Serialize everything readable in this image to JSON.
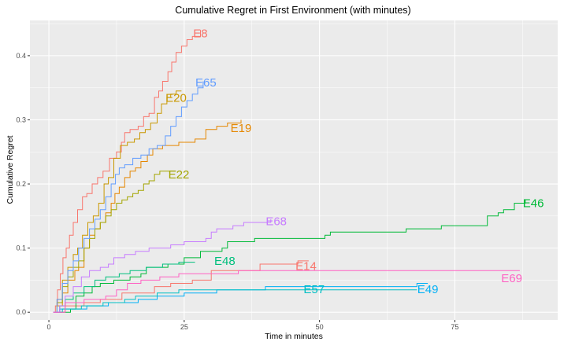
{
  "chart_data": {
    "type": "line",
    "title": "Cumulative Regret in First Environment (with minutes)",
    "xlabel": "Time in minutes",
    "ylabel": "Cumulative Regret",
    "xlim": [
      -3.5,
      94
    ],
    "ylim": [
      -0.012,
      0.455
    ],
    "x_ticks": [
      0,
      25,
      50,
      75
    ],
    "y_ticks": [
      0.0,
      0.1,
      0.2,
      0.3,
      0.4
    ],
    "y_tick_labels": [
      "0.0",
      "0.1",
      "0.2",
      "0.3",
      "0.4"
    ],
    "grid": true,
    "legend": "none (series labelled at line ends)",
    "background_color": "#ebebeb",
    "grid_color": "#ffffff",
    "series": [
      {
        "name": "E8",
        "color": "#f8766d",
        "points": [
          [
            0.8,
            0
          ],
          [
            1.2,
            0.01
          ],
          [
            1.6,
            0.035
          ],
          [
            2.1,
            0.06
          ],
          [
            2.6,
            0.085
          ],
          [
            3.2,
            0.1
          ],
          [
            3.8,
            0.12
          ],
          [
            4.5,
            0.14
          ],
          [
            5.3,
            0.16
          ],
          [
            6.2,
            0.18
          ],
          [
            7.0,
            0.185
          ],
          [
            8.0,
            0.2
          ],
          [
            9.0,
            0.21
          ],
          [
            10.0,
            0.22
          ],
          [
            11.2,
            0.24
          ],
          [
            12.5,
            0.25
          ],
          [
            13.4,
            0.265
          ],
          [
            14.0,
            0.28
          ],
          [
            15.0,
            0.285
          ],
          [
            16.5,
            0.29
          ],
          [
            17.5,
            0.305
          ],
          [
            18.5,
            0.31
          ],
          [
            19.5,
            0.335
          ],
          [
            20.3,
            0.345
          ],
          [
            21.0,
            0.36
          ],
          [
            22.0,
            0.375
          ],
          [
            22.7,
            0.39
          ],
          [
            23.5,
            0.405
          ],
          [
            24.5,
            0.415
          ],
          [
            25.5,
            0.425
          ],
          [
            26.5,
            0.43
          ],
          [
            28.0,
            0.44
          ]
        ],
        "label": "E8",
        "label_at": [
          28.0,
          0.435
        ]
      },
      {
        "name": "E14",
        "color": "#f8766d",
        "points": [
          [
            1.0,
            0
          ],
          [
            3.0,
            0.01
          ],
          [
            6.5,
            0.015
          ],
          [
            9.5,
            0.02
          ],
          [
            13.5,
            0.03
          ],
          [
            16.5,
            0.03
          ],
          [
            19.5,
            0.04
          ],
          [
            22.5,
            0.045
          ],
          [
            26.5,
            0.05
          ],
          [
            30.0,
            0.065
          ],
          [
            38.5,
            0.065
          ],
          [
            39.0,
            0.075
          ],
          [
            46.0,
            0.08
          ],
          [
            48.0,
            0.08
          ]
        ],
        "label": "E14",
        "label_at": [
          47.5,
          0.072
        ]
      },
      {
        "name": "E19",
        "color": "#e58700",
        "points": [
          [
            0.8,
            0
          ],
          [
            1.5,
            0.01
          ],
          [
            2.5,
            0.03
          ],
          [
            3.5,
            0.05
          ],
          [
            4.8,
            0.065
          ],
          [
            5.5,
            0.07
          ],
          [
            6.5,
            0.1
          ],
          [
            7.5,
            0.12
          ],
          [
            8.5,
            0.13
          ],
          [
            9.5,
            0.14
          ],
          [
            10.5,
            0.155
          ],
          [
            11.5,
            0.17
          ],
          [
            12.2,
            0.185
          ],
          [
            13.0,
            0.195
          ],
          [
            14.0,
            0.21
          ],
          [
            15.0,
            0.22
          ],
          [
            16.0,
            0.225
          ],
          [
            17.0,
            0.235
          ],
          [
            18.2,
            0.245
          ],
          [
            19.2,
            0.255
          ],
          [
            21.0,
            0.26
          ],
          [
            24.0,
            0.265
          ],
          [
            27.0,
            0.27
          ],
          [
            29.0,
            0.285
          ],
          [
            31.0,
            0.29
          ],
          [
            33.0,
            0.295
          ],
          [
            35.5,
            0.3
          ]
        ],
        "label": "E19",
        "label_at": [
          35.5,
          0.287
        ]
      },
      {
        "name": "E20",
        "color": "#c99800",
        "points": [
          [
            0.8,
            0
          ],
          [
            1.5,
            0.02
          ],
          [
            2.5,
            0.05
          ],
          [
            3.5,
            0.07
          ],
          [
            4.5,
            0.09
          ],
          [
            5.3,
            0.1
          ],
          [
            6.2,
            0.12
          ],
          [
            7.2,
            0.14
          ],
          [
            8.2,
            0.15
          ],
          [
            9.2,
            0.17
          ],
          [
            10.2,
            0.2
          ],
          [
            11.0,
            0.21
          ],
          [
            12.0,
            0.24
          ],
          [
            13.2,
            0.26
          ],
          [
            14.5,
            0.265
          ],
          [
            15.8,
            0.27
          ],
          [
            16.8,
            0.28
          ],
          [
            17.8,
            0.285
          ],
          [
            18.8,
            0.295
          ],
          [
            20.0,
            0.31
          ],
          [
            20.8,
            0.325
          ],
          [
            21.8,
            0.335
          ],
          [
            22.5,
            0.34
          ],
          [
            23.5,
            0.345
          ],
          [
            24.5,
            0.345
          ]
        ],
        "label": "E20",
        "label_at": [
          23.5,
          0.334
        ]
      },
      {
        "name": "E22",
        "color": "#a3a500",
        "points": [
          [
            0.8,
            0
          ],
          [
            1.5,
            0.015
          ],
          [
            2.5,
            0.04
          ],
          [
            3.5,
            0.055
          ],
          [
            4.5,
            0.07
          ],
          [
            5.5,
            0.08
          ],
          [
            6.5,
            0.1
          ],
          [
            7.5,
            0.115
          ],
          [
            8.5,
            0.13
          ],
          [
            9.5,
            0.14
          ],
          [
            10.5,
            0.15
          ],
          [
            11.5,
            0.16
          ],
          [
            12.5,
            0.17
          ],
          [
            13.5,
            0.175
          ],
          [
            14.5,
            0.18
          ],
          [
            15.5,
            0.185
          ],
          [
            16.5,
            0.19
          ],
          [
            17.5,
            0.2
          ],
          [
            18.5,
            0.205
          ],
          [
            19.5,
            0.215
          ],
          [
            20.5,
            0.22
          ],
          [
            22.0,
            0.22
          ],
          [
            23.5,
            0.22
          ]
        ],
        "label": "E22",
        "label_at": [
          24.0,
          0.215
        ]
      },
      {
        "name": "E46",
        "color": "#00ba38",
        "points": [
          [
            1.0,
            0
          ],
          [
            4.0,
            0.005
          ],
          [
            5.0,
            0.025
          ],
          [
            6.5,
            0.03
          ],
          [
            8.0,
            0.04
          ],
          [
            9.5,
            0.045
          ],
          [
            12.0,
            0.05
          ],
          [
            14.0,
            0.05
          ],
          [
            15.0,
            0.055
          ],
          [
            17.0,
            0.06
          ],
          [
            18.0,
            0.07
          ],
          [
            22.0,
            0.075
          ],
          [
            24.0,
            0.075
          ],
          [
            25.0,
            0.085
          ],
          [
            28.0,
            0.095
          ],
          [
            32.0,
            0.1
          ],
          [
            33.0,
            0.11
          ],
          [
            38.0,
            0.115
          ],
          [
            51.0,
            0.12
          ],
          [
            52.0,
            0.125
          ],
          [
            60.0,
            0.125
          ],
          [
            66.0,
            0.13
          ],
          [
            72.0,
            0.13
          ],
          [
            72.5,
            0.135
          ],
          [
            80.0,
            0.135
          ],
          [
            81.0,
            0.15
          ],
          [
            83.0,
            0.155
          ],
          [
            84.0,
            0.16
          ],
          [
            86.0,
            0.17
          ],
          [
            88.0,
            0.175
          ]
        ],
        "label": "E46",
        "label_at": [
          89.5,
          0.17
        ]
      },
      {
        "name": "E48",
        "color": "#00bf7d",
        "points": [
          [
            0.8,
            0
          ],
          [
            2.0,
            0.01
          ],
          [
            3.0,
            0.02
          ],
          [
            4.5,
            0.03
          ],
          [
            6.5,
            0.04
          ],
          [
            8.5,
            0.05
          ],
          [
            10.5,
            0.055
          ],
          [
            13.0,
            0.06
          ],
          [
            15.0,
            0.065
          ],
          [
            18.0,
            0.07
          ],
          [
            21.0,
            0.075
          ],
          [
            24.0,
            0.078
          ],
          [
            27.0,
            0.078
          ]
        ],
        "label": "E48",
        "label_at": [
          32.5,
          0.08
        ]
      },
      {
        "name": "E49",
        "color": "#00b0f6",
        "points": [
          [
            1.0,
            0
          ],
          [
            2.0,
            0.005
          ],
          [
            5.0,
            0.005
          ],
          [
            7.0,
            0.01
          ],
          [
            11.0,
            0.015
          ],
          [
            14.0,
            0.015
          ],
          [
            16.5,
            0.02
          ],
          [
            20.0,
            0.025
          ],
          [
            25.0,
            0.03
          ],
          [
            31.0,
            0.035
          ],
          [
            36.0,
            0.035
          ],
          [
            40.0,
            0.04
          ],
          [
            50.0,
            0.04
          ],
          [
            66.0,
            0.04
          ],
          [
            68.0,
            0.045
          ],
          [
            70.0,
            0.045
          ]
        ],
        "label": "E49",
        "label_at": [
          70.0,
          0.036
        ]
      },
      {
        "name": "E57",
        "color": "#00bfc4",
        "points": [
          [
            0.8,
            0
          ],
          [
            2.5,
            0.005
          ],
          [
            6.0,
            0.01
          ],
          [
            10.0,
            0.015
          ],
          [
            14.0,
            0.02
          ],
          [
            16.0,
            0.025
          ],
          [
            20.0,
            0.03
          ],
          [
            24.0,
            0.035
          ],
          [
            30.0,
            0.035
          ],
          [
            40.0,
            0.035
          ],
          [
            50.0,
            0.035
          ],
          [
            60.0,
            0.035
          ],
          [
            68.0,
            0.035
          ]
        ],
        "label": "E57",
        "label_at": [
          49.0,
          0.036
        ]
      },
      {
        "name": "E65",
        "color": "#619cff",
        "points": [
          [
            0.8,
            0
          ],
          [
            1.5,
            0.02
          ],
          [
            2.5,
            0.045
          ],
          [
            3.5,
            0.065
          ],
          [
            4.5,
            0.08
          ],
          [
            5.5,
            0.1
          ],
          [
            6.5,
            0.115
          ],
          [
            7.5,
            0.13
          ],
          [
            8.5,
            0.145
          ],
          [
            9.5,
            0.16
          ],
          [
            10.5,
            0.18
          ],
          [
            11.5,
            0.2
          ],
          [
            12.3,
            0.215
          ],
          [
            13.0,
            0.225
          ],
          [
            14.0,
            0.23
          ],
          [
            15.5,
            0.24
          ],
          [
            17.0,
            0.245
          ],
          [
            18.5,
            0.255
          ],
          [
            20.0,
            0.26
          ],
          [
            21.5,
            0.275
          ],
          [
            22.5,
            0.29
          ],
          [
            23.5,
            0.305
          ],
          [
            24.5,
            0.32
          ],
          [
            25.5,
            0.33
          ],
          [
            26.5,
            0.34
          ],
          [
            27.5,
            0.35
          ],
          [
            28.5,
            0.36
          ]
        ],
        "label": "E65",
        "label_at": [
          29.0,
          0.358
        ]
      },
      {
        "name": "E68",
        "color": "#c77cff",
        "points": [
          [
            0.8,
            0
          ],
          [
            2.0,
            0.01
          ],
          [
            3.0,
            0.025
          ],
          [
            4.5,
            0.04
          ],
          [
            6.0,
            0.055
          ],
          [
            7.5,
            0.065
          ],
          [
            9.5,
            0.07
          ],
          [
            11.0,
            0.075
          ],
          [
            12.0,
            0.085
          ],
          [
            14.0,
            0.09
          ],
          [
            16.0,
            0.095
          ],
          [
            18.5,
            0.1
          ],
          [
            21.0,
            0.1
          ],
          [
            22.5,
            0.105
          ],
          [
            25.0,
            0.11
          ],
          [
            29.0,
            0.115
          ],
          [
            30.0,
            0.125
          ],
          [
            31.0,
            0.13
          ],
          [
            34.0,
            0.135
          ],
          [
            36.0,
            0.14
          ],
          [
            38.0,
            0.14
          ],
          [
            41.0,
            0.145
          ]
        ],
        "label": "E68",
        "label_at": [
          42.0,
          0.142
        ]
      },
      {
        "name": "E69",
        "color": "#ff61c3",
        "points": [
          [
            0.8,
            0
          ],
          [
            3.0,
            0.015
          ],
          [
            6.5,
            0.02
          ],
          [
            10.5,
            0.025
          ],
          [
            12.5,
            0.035
          ],
          [
            14.5,
            0.045
          ],
          [
            17.0,
            0.05
          ],
          [
            20.5,
            0.055
          ],
          [
            24.0,
            0.06
          ],
          [
            28.0,
            0.06
          ],
          [
            35.0,
            0.065
          ],
          [
            45.0,
            0.065
          ],
          [
            55.0,
            0.065
          ],
          [
            70.0,
            0.065
          ],
          [
            87.0,
            0.065
          ]
        ],
        "label": "E69",
        "label_at": [
          85.5,
          0.053
        ]
      }
    ]
  }
}
